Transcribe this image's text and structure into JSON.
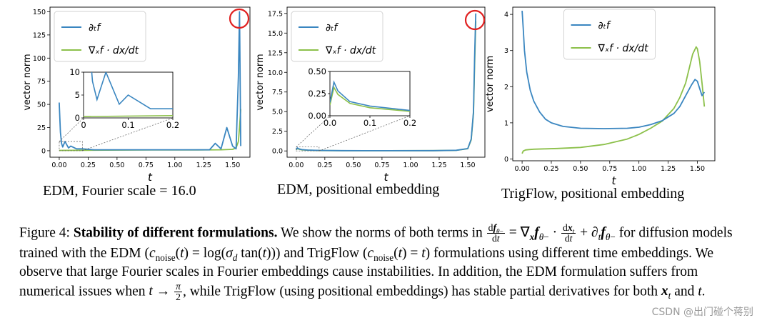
{
  "chart_data": [
    {
      "type": "line",
      "panel": "edm-fourier",
      "xlabel": "t",
      "ylabel": "vector norm",
      "xlim": [
        -0.08,
        1.65
      ],
      "ylim": [
        -7,
        155
      ],
      "xticks": [
        "0.00",
        "0.25",
        "0.50",
        "0.75",
        "1.00",
        "1.25",
        "1.50"
      ],
      "xtick_values": [
        0,
        0.25,
        0.5,
        0.75,
        1.0,
        1.25,
        1.5
      ],
      "yticks": [
        "0",
        "25",
        "50",
        "75",
        "100",
        "125",
        "150"
      ],
      "ytick_values": [
        0,
        25,
        50,
        75,
        100,
        125,
        150
      ],
      "legend": {
        "placement": "top-left",
        "entries": [
          "∂ₜf",
          "∇ₓf · dx/dt"
        ]
      },
      "series": [
        {
          "name": "∂ₜf",
          "color": "#3a86c0",
          "x": [
            0.0,
            0.01,
            0.02,
            0.03,
            0.05,
            0.08,
            0.1,
            0.15,
            0.2,
            0.3,
            0.4,
            0.5,
            0.6,
            0.75,
            0.9,
            1.0,
            1.1,
            1.2,
            1.3,
            1.35,
            1.4,
            1.45,
            1.5,
            1.53,
            1.55,
            1.56,
            1.57
          ],
          "values": [
            52,
            20,
            8,
            4,
            10,
            3,
            5,
            2,
            2,
            1,
            1,
            1,
            1,
            1,
            1,
            1,
            1,
            1,
            1,
            8,
            2,
            25,
            5,
            2,
            80,
            150,
            5
          ]
        },
        {
          "name": "∇ₓf · dx/dt",
          "color": "#8cc04a",
          "x": [
            0.0,
            0.2,
            0.4,
            0.6,
            0.8,
            1.0,
            1.2,
            1.4,
            1.5,
            1.53,
            1.55,
            1.56,
            1.57
          ],
          "values": [
            0.3,
            0.5,
            0.6,
            0.7,
            0.8,
            0.8,
            0.9,
            1.0,
            1.5,
            3,
            10,
            25,
            45
          ]
        }
      ],
      "inset": {
        "xlim": [
          0,
          0.2
        ],
        "ylim": [
          0,
          10
        ],
        "xticks": [
          "0",
          "0.1",
          "0.2"
        ],
        "xtick_values": [
          0,
          0.1,
          0.2
        ],
        "yticks": [
          "0",
          "5",
          "10"
        ],
        "ytick_values": [
          0,
          5,
          10
        ]
      },
      "annotation": "red circle around peak near t = 1.57"
    },
    {
      "type": "line",
      "panel": "edm-positional",
      "xlabel": "t",
      "ylabel": "vector norm",
      "xlim": [
        -0.08,
        1.65
      ],
      "ylim": [
        -0.8,
        18.3
      ],
      "xticks": [
        "0.00",
        "0.25",
        "0.50",
        "0.75",
        "1.00",
        "1.25",
        "1.50"
      ],
      "xtick_values": [
        0,
        0.25,
        0.5,
        0.75,
        1.0,
        1.25,
        1.5
      ],
      "yticks": [
        "0.0",
        "2.5",
        "5.0",
        "7.5",
        "10.0",
        "12.5",
        "15.0",
        "17.5"
      ],
      "ytick_values": [
        0,
        2.5,
        5,
        7.5,
        10,
        12.5,
        15,
        17.5
      ],
      "legend": {
        "placement": "top-left",
        "entries": [
          "∂ₜf",
          "∇ₓf · dx/dt"
        ]
      },
      "series": [
        {
          "name": "∂ₜf",
          "color": "#3a86c0",
          "x": [
            0.0,
            0.01,
            0.02,
            0.05,
            0.1,
            0.2,
            0.4,
            0.8,
            1.2,
            1.4,
            1.5,
            1.53,
            1.55,
            1.56,
            1.57
          ],
          "values": [
            0.15,
            0.38,
            0.28,
            0.16,
            0.11,
            0.06,
            0.04,
            0.03,
            0.04,
            0.08,
            0.3,
            1.5,
            5,
            12,
            17.5
          ]
        },
        {
          "name": "∇ₓf · dx/dt",
          "color": "#8cc04a",
          "x": [
            0.0,
            0.01,
            0.02,
            0.05,
            0.1,
            0.2,
            0.4,
            0.8,
            1.2,
            1.4,
            1.5,
            1.53,
            1.55,
            1.56,
            1.57
          ],
          "values": [
            0.12,
            0.32,
            0.24,
            0.14,
            0.09,
            0.05,
            0.03,
            0.03,
            0.04,
            0.07,
            0.28,
            1.4,
            4.8,
            11,
            16.5
          ]
        }
      ],
      "inset": {
        "xlim": [
          0,
          0.2
        ],
        "ylim": [
          0,
          0.5
        ],
        "xticks": [
          "0.0",
          "0.1",
          "0.2"
        ],
        "xtick_values": [
          0,
          0.1,
          0.2
        ],
        "yticks": [
          "0.00",
          "0.25",
          "0.50"
        ],
        "ytick_values": [
          0,
          0.25,
          0.5
        ]
      },
      "annotation": "red circle around peak near t = 1.57"
    },
    {
      "type": "line",
      "panel": "trigflow-positional",
      "xlabel": "t",
      "ylabel": "vector norm",
      "xlim": [
        -0.08,
        1.65
      ],
      "ylim": [
        -0.05,
        4.2
      ],
      "xticks": [
        "0.00",
        "0.25",
        "0.50",
        "0.75",
        "1.00",
        "1.25",
        "1.50"
      ],
      "xtick_values": [
        0,
        0.25,
        0.5,
        0.75,
        1.0,
        1.25,
        1.5
      ],
      "yticks": [
        "0",
        "1",
        "2",
        "3",
        "4"
      ],
      "ytick_values": [
        0,
        1,
        2,
        3,
        4
      ],
      "legend": {
        "placement": "top-center",
        "entries": [
          "∂ₜf",
          "∇ₓf · dx/dt"
        ]
      },
      "series": [
        {
          "name": "∂ₜf",
          "color": "#3a86c0",
          "x": [
            0.0,
            0.01,
            0.02,
            0.04,
            0.07,
            0.1,
            0.15,
            0.2,
            0.25,
            0.35,
            0.5,
            0.7,
            0.9,
            1.0,
            1.1,
            1.2,
            1.3,
            1.35,
            1.4,
            1.45,
            1.48,
            1.5,
            1.52,
            1.54,
            1.56
          ],
          "values": [
            4.1,
            3.6,
            3.0,
            2.4,
            1.9,
            1.6,
            1.3,
            1.1,
            1.0,
            0.9,
            0.85,
            0.84,
            0.85,
            0.88,
            0.95,
            1.06,
            1.26,
            1.45,
            1.75,
            2.05,
            2.2,
            2.15,
            1.95,
            1.75,
            1.85
          ]
        },
        {
          "name": "∇ₓf · dx/dt",
          "color": "#8cc04a",
          "x": [
            0.0,
            0.01,
            0.03,
            0.06,
            0.1,
            0.2,
            0.3,
            0.5,
            0.7,
            0.9,
            1.0,
            1.1,
            1.2,
            1.3,
            1.35,
            1.4,
            1.43,
            1.46,
            1.49,
            1.5,
            1.52,
            1.54,
            1.56
          ],
          "values": [
            0.15,
            0.22,
            0.25,
            0.26,
            0.27,
            0.28,
            0.29,
            0.32,
            0.4,
            0.55,
            0.68,
            0.85,
            1.05,
            1.4,
            1.7,
            2.1,
            2.5,
            2.9,
            3.1,
            3.05,
            2.7,
            2.1,
            1.45
          ]
        }
      ],
      "inset": null,
      "annotation": ""
    }
  ],
  "panel_captions": [
    "EDM, Fourier scale = 16.0",
    "EDM, positional embedding",
    "TrigFlow, positional embedding"
  ],
  "caption": {
    "label": "Figure 4:",
    "bold_title": "Stability of different formulations.",
    "s1": "We show the norms of both terms in",
    "s2": "for diffusion models trained with the EDM",
    "s3": "and TrigFlow",
    "s4": "formulations using different time embeddings. We observe that large Fourier scales in Fourier embeddings cause instabilities. In addition, the EDM formulation suffers from numerical issues when",
    "s5": ", while TrigFlow (using positional embeddings) has stable partial derivatives for both",
    "s6": "and",
    "s7": "."
  },
  "watermark": "CSDN @出门碰个蒋别"
}
